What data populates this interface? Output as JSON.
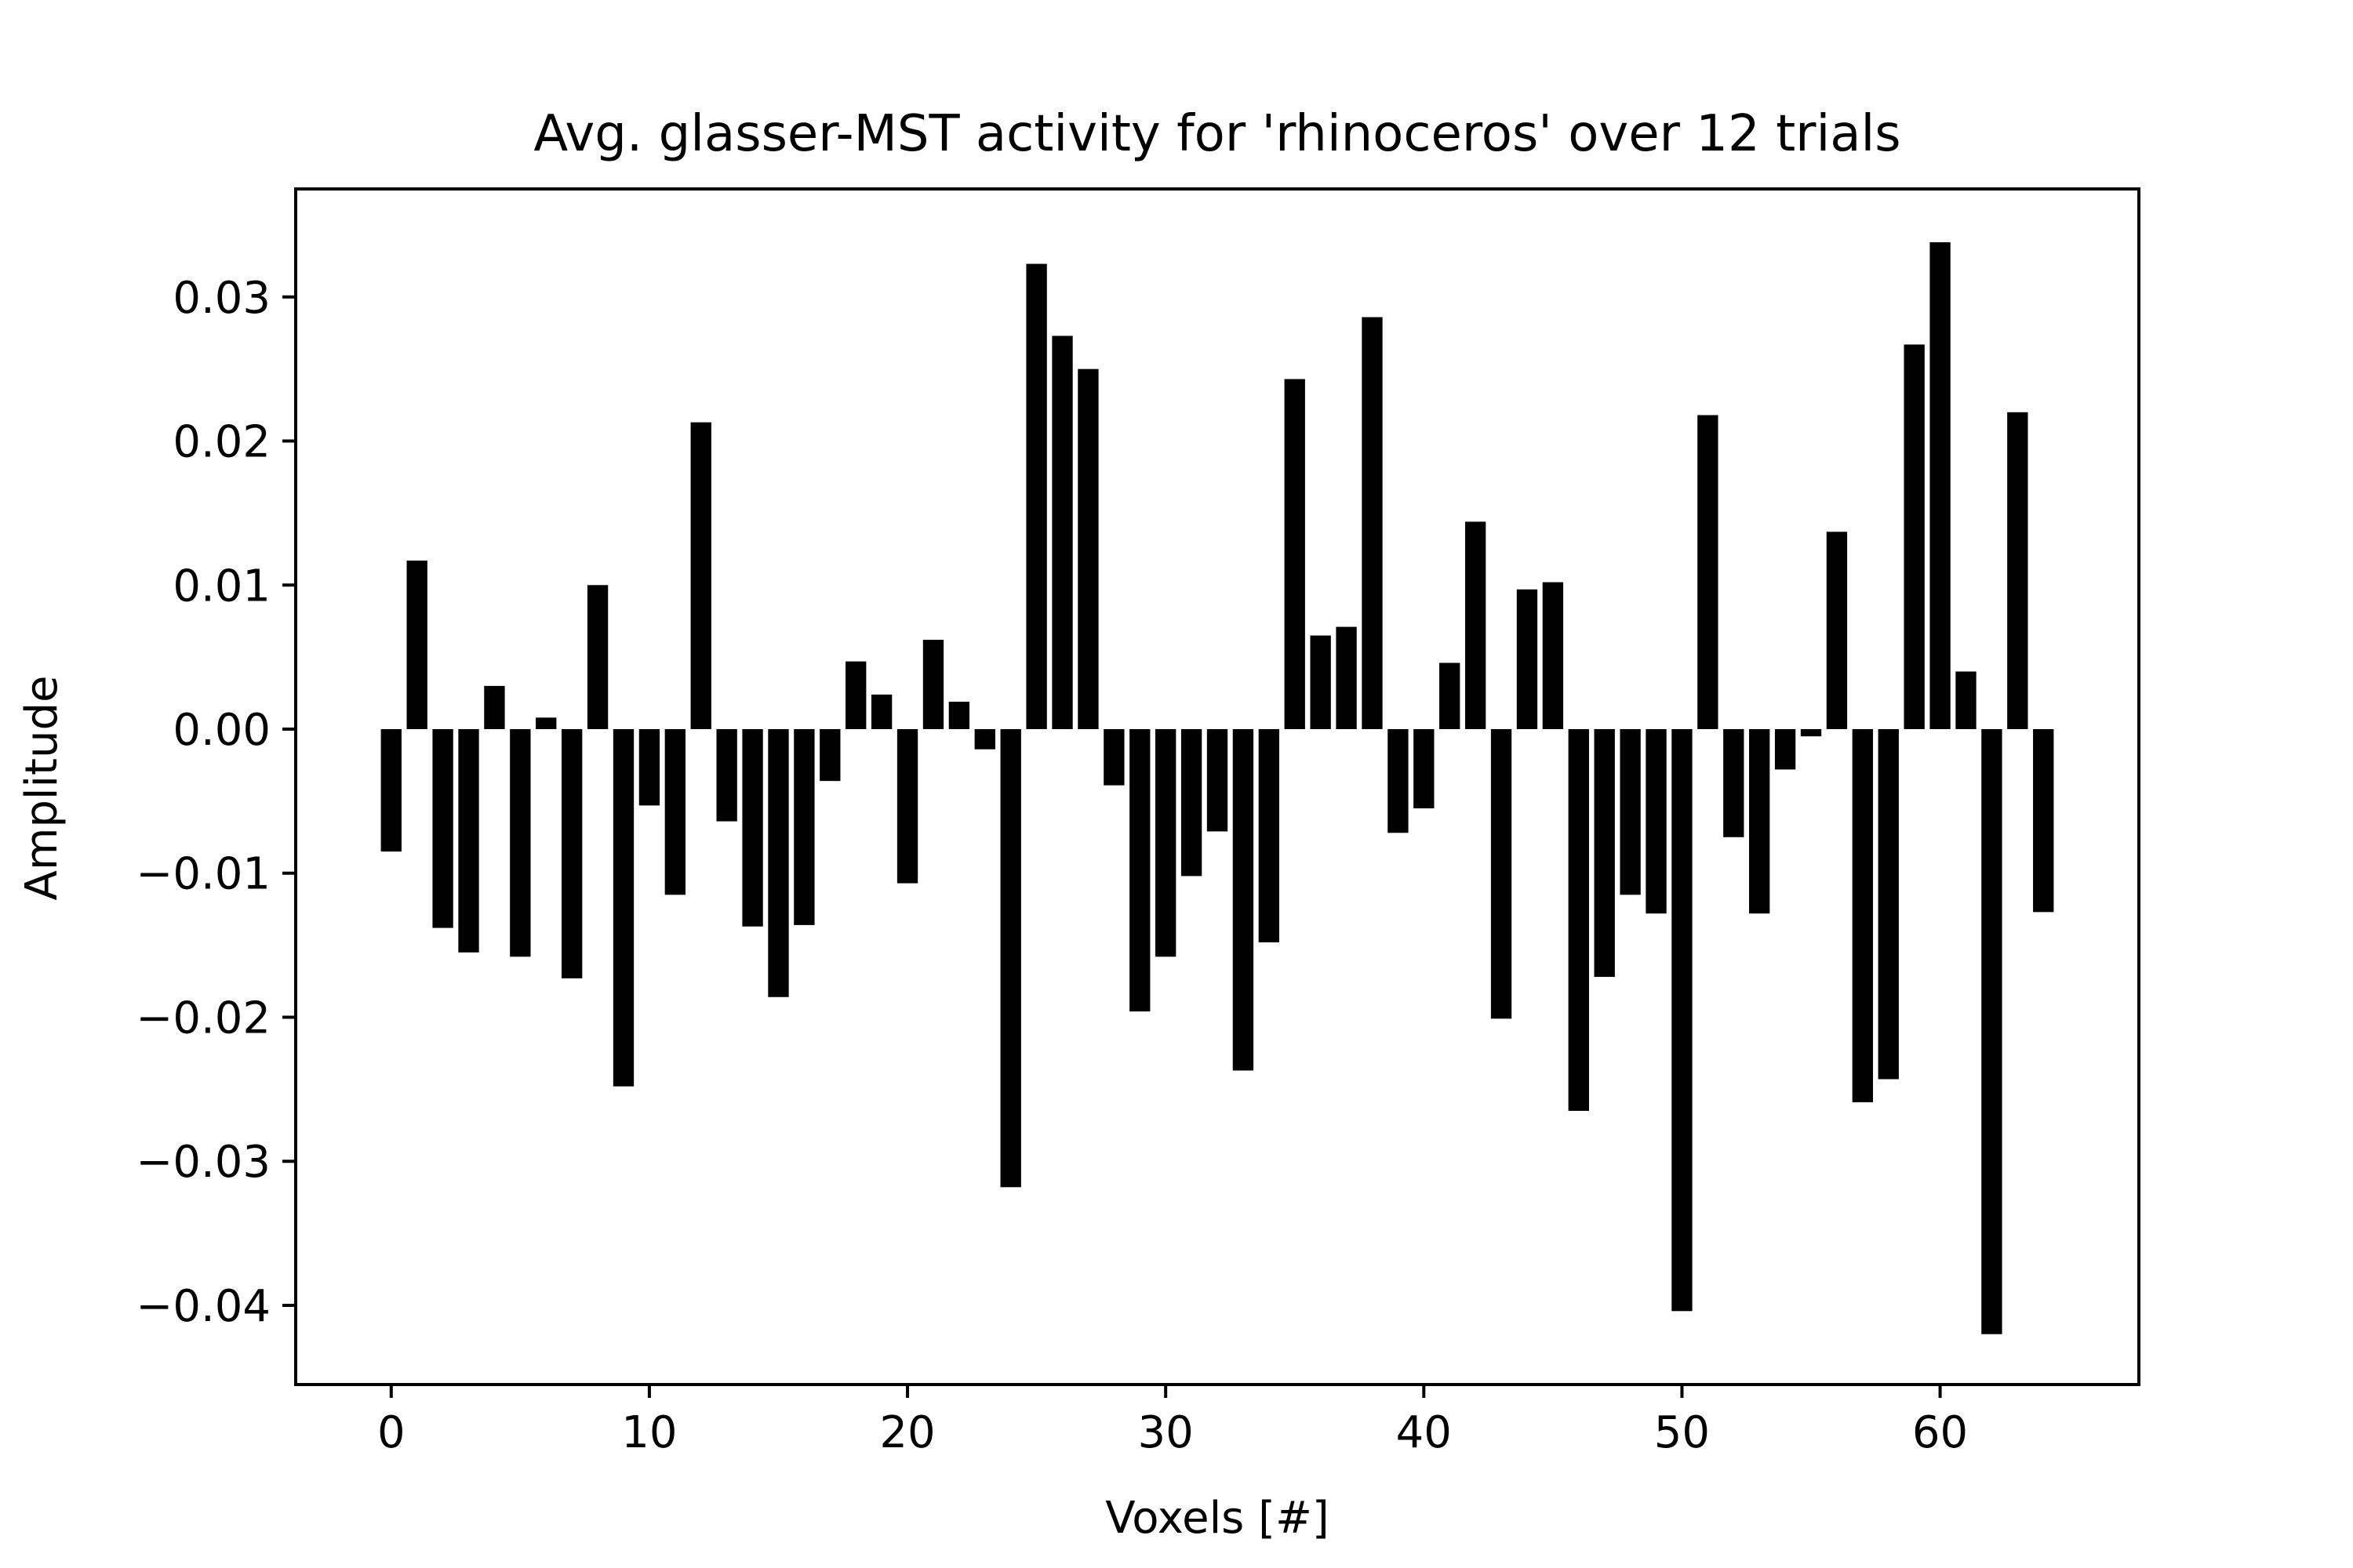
{
  "chart_data": {
    "type": "bar",
    "title": "Avg. glasser-MST activity for 'rhinoceros' over 12 trials",
    "xlabel": "Voxels [#]",
    "ylabel": "Amplitude",
    "xlim": [
      -3.7,
      67.7
    ],
    "ylim": [
      -0.0455,
      0.0375
    ],
    "x_ticks": [
      0,
      10,
      20,
      30,
      40,
      50,
      60
    ],
    "x_tick_labels": [
      "0",
      "10",
      "20",
      "30",
      "40",
      "50",
      "60"
    ],
    "y_ticks": [
      0.03,
      0.02,
      0.01,
      0.0,
      -0.01,
      -0.02,
      -0.03,
      -0.04
    ],
    "y_tick_labels": [
      "0.03",
      "0.02",
      "0.01",
      "0.00",
      "−0.01",
      "−0.02",
      "−0.03",
      "−0.04"
    ],
    "grid": false,
    "bar_color": "#000000",
    "x": [
      0,
      1,
      2,
      3,
      4,
      5,
      6,
      7,
      8,
      9,
      10,
      11,
      12,
      13,
      14,
      15,
      16,
      17,
      18,
      19,
      20,
      21,
      22,
      23,
      24,
      25,
      26,
      27,
      28,
      29,
      30,
      31,
      32,
      33,
      34,
      35,
      36,
      37,
      38,
      39,
      40,
      41,
      42,
      43,
      44,
      45,
      46,
      47,
      48,
      49,
      50,
      51,
      52,
      53,
      54,
      55,
      56,
      57,
      58,
      59,
      60,
      61,
      62,
      63,
      64
    ],
    "values": [
      -0.0085,
      0.0117,
      -0.0138,
      -0.0155,
      0.003,
      -0.0158,
      0.0008,
      -0.0173,
      0.01,
      -0.0248,
      -0.0053,
      -0.0115,
      0.0213,
      -0.0064,
      -0.0137,
      -0.0186,
      -0.0136,
      -0.0036,
      0.0047,
      0.0024,
      -0.0107,
      0.0062,
      0.0019,
      -0.0014,
      -0.0318,
      0.0323,
      0.0273,
      0.025,
      -0.0039,
      -0.0196,
      -0.0158,
      -0.0102,
      -0.0071,
      -0.0237,
      -0.0148,
      0.0243,
      0.0065,
      0.0071,
      0.0286,
      -0.0072,
      -0.0055,
      0.0046,
      0.0144,
      -0.0201,
      0.0097,
      0.0102,
      -0.0265,
      -0.0172,
      -0.0115,
      -0.0128,
      -0.0404,
      0.0218,
      -0.0075,
      -0.0128,
      -0.0028,
      -0.0005,
      0.0137,
      -0.0259,
      -0.0243,
      0.0267,
      0.0338,
      0.004,
      -0.042,
      0.022,
      -0.0127
    ]
  }
}
